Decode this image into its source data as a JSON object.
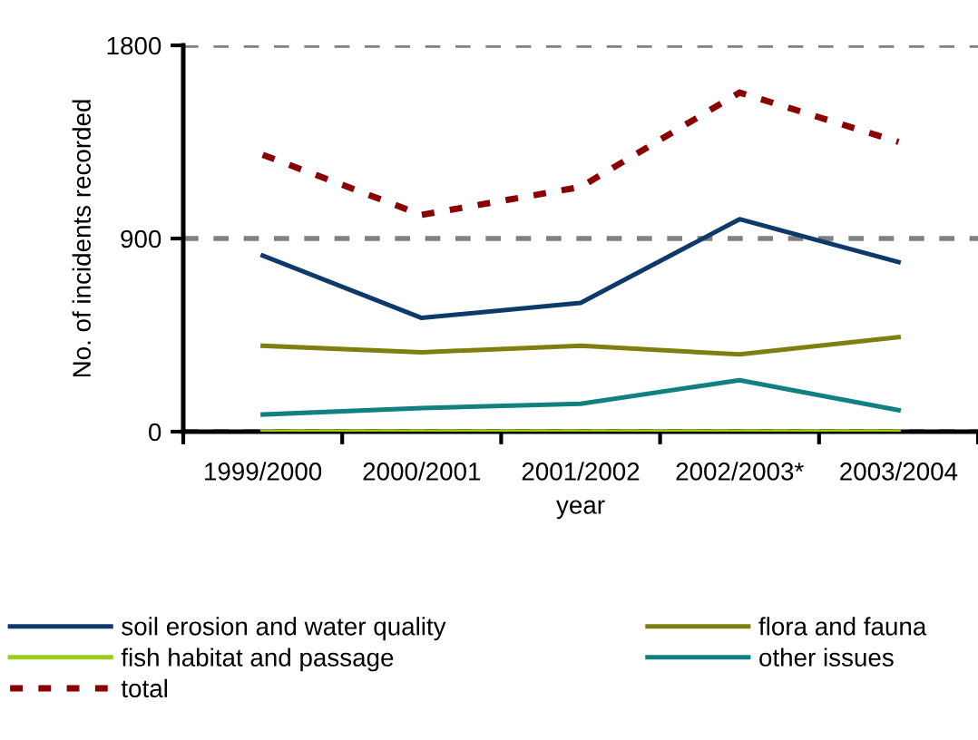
{
  "chart_data": {
    "type": "line",
    "xlabel": "year",
    "ylabel": "No. of incidents recorded",
    "categories": [
      "1999/2000",
      "2000/2001",
      "2001/2002",
      "2002/2003*",
      "2003/2004"
    ],
    "series": [
      {
        "name": "soil erosion and water quality",
        "color": "#0d3a6b",
        "values": [
          820,
          530,
          600,
          990,
          790
        ]
      },
      {
        "name": "flora and fauna",
        "color": "#7f7f10",
        "values": [
          400,
          370,
          400,
          360,
          440
        ]
      },
      {
        "name": "fish habitat and passage",
        "color": "#9acd1a",
        "values": [
          0,
          0,
          0,
          0,
          0
        ]
      },
      {
        "name": "other issues",
        "color": "#108080",
        "values": [
          80,
          110,
          130,
          240,
          100
        ]
      },
      {
        "name": "total",
        "color": "#8b0000",
        "values": [
          1290,
          1010,
          1140,
          1580,
          1350
        ],
        "line_style": "dotted"
      }
    ],
    "ylim": [
      0,
      1800
    ],
    "yticks": [
      0,
      900,
      1800
    ],
    "grid": "y",
    "legend": "bottom"
  }
}
